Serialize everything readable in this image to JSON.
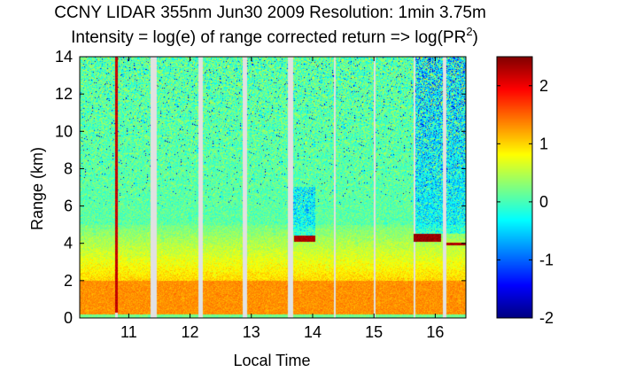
{
  "chart_data": {
    "type": "heatmap",
    "title": "CCNY LIDAR 355nm Jun30 2009 Resolution: 1min 3.75m",
    "subtitle": {
      "prefix": "Intensity = log(e) of range corrected return => log(PR",
      "superscript": "2",
      "suffix": ")"
    },
    "xlabel": "Local Time",
    "ylabel": "Range (km)",
    "xlim": [
      10.2,
      16.5
    ],
    "ylim": [
      0,
      14
    ],
    "xticks": [
      11,
      12,
      13,
      14,
      15,
      16
    ],
    "yticks": [
      0,
      2,
      4,
      6,
      8,
      10,
      12,
      14
    ],
    "colorbar": {
      "range": [
        -2,
        2.5
      ],
      "ticks": [
        -2,
        -1,
        0,
        1,
        2
      ],
      "colormap": "jet"
    },
    "data_gaps": [
      {
        "start": 10.78,
        "end": 10.82
      },
      {
        "start": 11.36,
        "end": 11.45
      },
      {
        "start": 12.14,
        "end": 12.21
      },
      {
        "start": 12.86,
        "end": 12.93
      },
      {
        "start": 13.6,
        "end": 13.68
      },
      {
        "start": 14.35,
        "end": 14.37
      },
      {
        "start": 15.0,
        "end": 15.02
      },
      {
        "start": 15.65,
        "end": 15.67
      },
      {
        "start": 16.12,
        "end": 16.18
      }
    ],
    "intensity_profile": {
      "surface_layer": {
        "range_km": [
          0.0,
          0.2
        ],
        "value": 0.2
      },
      "boundary_layer": {
        "range_km": [
          0.2,
          2.0
        ],
        "value": 1.3
      },
      "transition": {
        "range_km": [
          2.0,
          5.0
        ],
        "value_start": 1.0,
        "value_end": 0.2
      },
      "free_troposphere": {
        "range_km": [
          5.0,
          14.0
        ],
        "value": 0.1
      }
    },
    "cloud_layers": [
      {
        "start": 10.78,
        "end": 10.82,
        "range_km": [
          0.3,
          14.0
        ],
        "value": 2.2
      },
      {
        "start": 13.7,
        "end": 14.05,
        "range_km": [
          4.1,
          4.4
        ],
        "value": 2.3
      },
      {
        "start": 15.65,
        "end": 16.1,
        "range_km": [
          4.1,
          4.5
        ],
        "value": 2.4
      },
      {
        "start": 16.18,
        "end": 16.5,
        "range_km": [
          3.9,
          4.05
        ],
        "value": 2.3
      }
    ],
    "low_signal_regions": [
      {
        "start": 13.68,
        "end": 14.05,
        "range_km": [
          4.4,
          7.0
        ]
      },
      {
        "start": 15.65,
        "end": 16.5,
        "range_km": [
          4.5,
          14.0
        ]
      }
    ]
  }
}
